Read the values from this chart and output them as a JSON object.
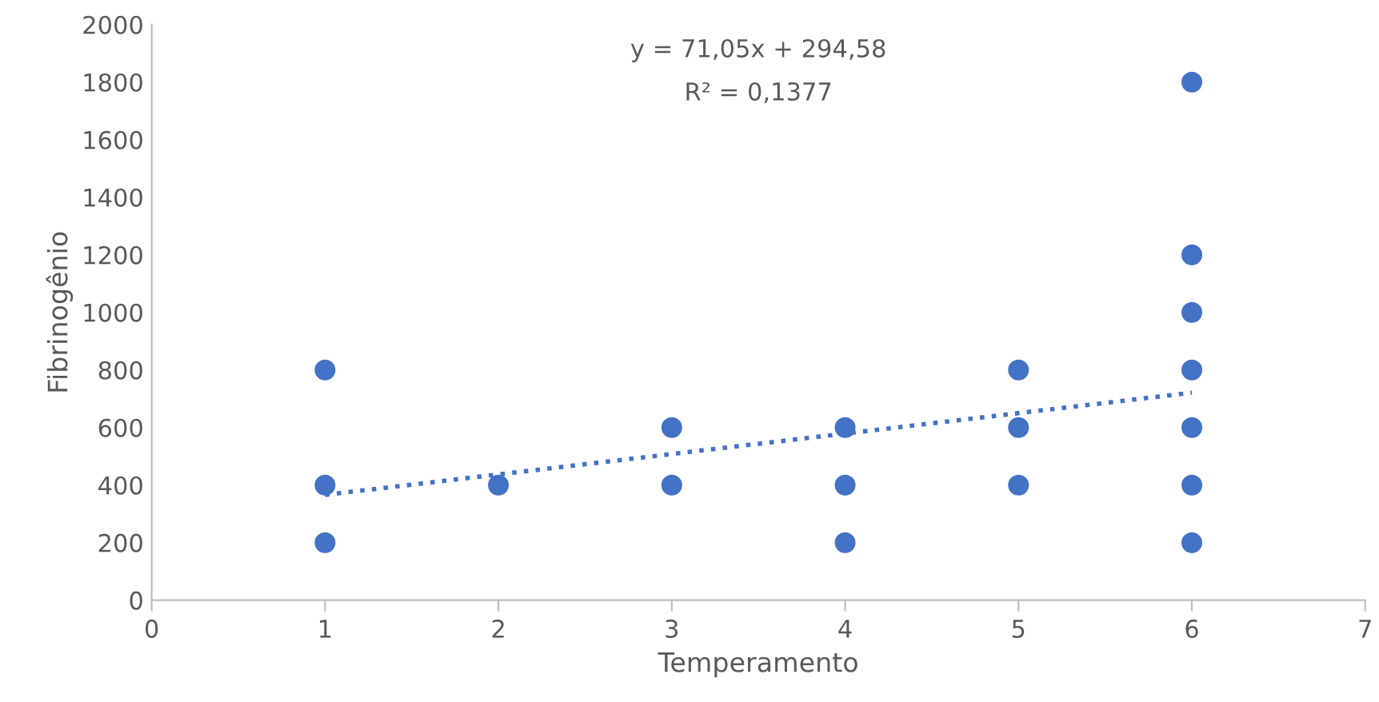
{
  "chart_data": {
    "type": "scatter",
    "xlabel": "Temperamento",
    "ylabel": "Fibrinogênio",
    "annotations": [
      "y = 71,05x + 294,58",
      "R² = 0,1377"
    ],
    "series": [
      {
        "color": "#4472c4",
        "marker": "circle",
        "x": [
          1,
          1,
          1,
          2,
          3,
          3,
          4,
          4,
          4,
          5,
          5,
          5,
          6,
          6,
          6,
          6,
          6,
          6,
          6
        ],
        "values": [
          800,
          400,
          200,
          400,
          600,
          400,
          600,
          400,
          200,
          800,
          600,
          400,
          1800,
          1200,
          1000,
          800,
          600,
          400,
          200
        ]
      },
      {
        "type": "line",
        "color": "#4472c4",
        "marker": "none",
        "line_style": "dotted",
        "x": [
          1,
          6
        ],
        "values": [
          366,
          721
        ]
      }
    ],
    "xlim": [
      0,
      7
    ],
    "xticks": [
      0,
      1,
      2,
      3,
      4,
      5,
      6,
      7
    ],
    "ylim": [
      0,
      2000
    ],
    "yticks": [
      0,
      200,
      400,
      600,
      800,
      1000,
      1200,
      1400,
      1600,
      1800,
      2000
    ],
    "grid": false,
    "legend": false
  }
}
